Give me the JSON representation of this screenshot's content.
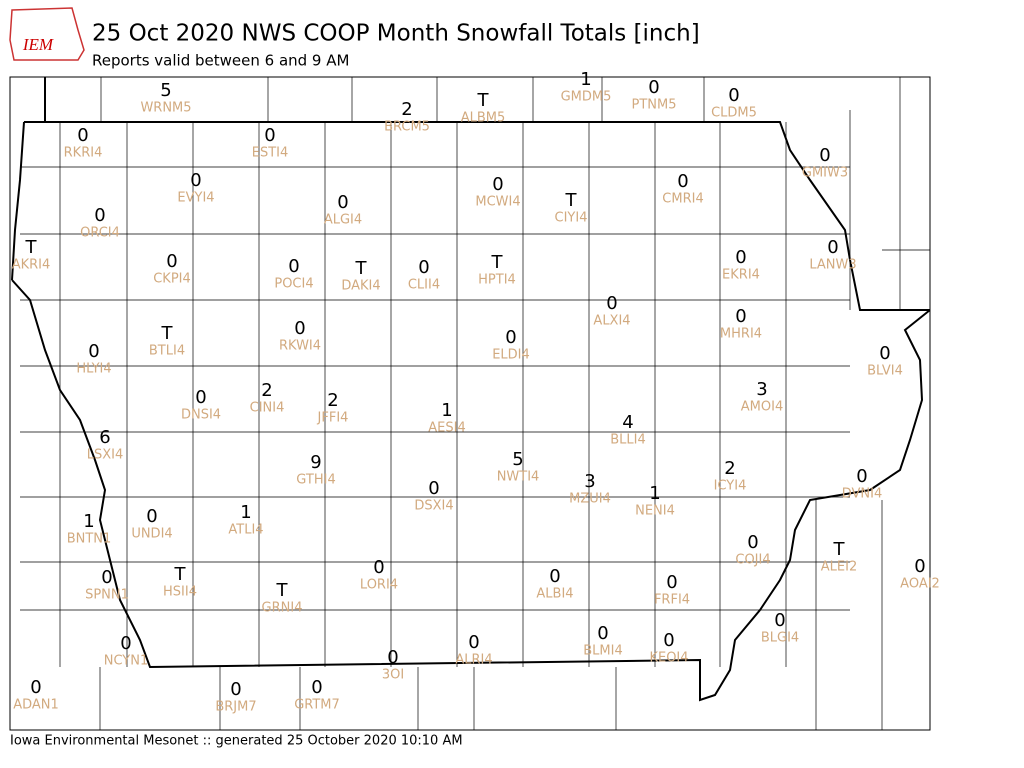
{
  "header": {
    "logo": "IEM",
    "title": "25 Oct 2020 NWS COOP Month Snowfall Totals [inch]",
    "subtitle": "Reports valid between 6 and 9 AM"
  },
  "stations": [
    {
      "id": "WRNM5",
      "value": 5
    },
    {
      "id": "BRCM5",
      "value": 2
    },
    {
      "id": "ALBM5",
      "value": "T"
    },
    {
      "id": "GMDM5",
      "value": 1
    },
    {
      "id": "PTNM5",
      "value": 0
    },
    {
      "id": "CLDM5",
      "value": 0
    },
    {
      "id": "RKRI4",
      "value": 0
    },
    {
      "id": "ESTI4",
      "value": 0
    },
    {
      "id": "GMIW3",
      "value": 0
    },
    {
      "id": "EVYI4",
      "value": 0
    },
    {
      "id": "ALGI4",
      "value": 0
    },
    {
      "id": "MCWI4",
      "value": 0
    },
    {
      "id": "CIYI4",
      "value": "T"
    },
    {
      "id": "CMRI4",
      "value": 0
    },
    {
      "id": "ORCI4",
      "value": 0
    },
    {
      "id": "AKRI4",
      "value": "T"
    },
    {
      "id": "CKPI4",
      "value": 0
    },
    {
      "id": "POCI4",
      "value": 0
    },
    {
      "id": "DAKI4",
      "value": "T"
    },
    {
      "id": "CLII4",
      "value": 0
    },
    {
      "id": "HPTI4",
      "value": "T"
    },
    {
      "id": "EKRI4",
      "value": 0
    },
    {
      "id": "LANW3",
      "value": 0
    },
    {
      "id": "ALXI4",
      "value": 0
    },
    {
      "id": "MHRI4",
      "value": 0
    },
    {
      "id": "BTLI4",
      "value": "T"
    },
    {
      "id": "RKWI4",
      "value": 0
    },
    {
      "id": "ELDI4",
      "value": 0
    },
    {
      "id": "HLYI4",
      "value": 0
    },
    {
      "id": "BLVI4",
      "value": 0
    },
    {
      "id": "DNSI4",
      "value": 0
    },
    {
      "id": "CINI4",
      "value": 2
    },
    {
      "id": "JFFI4",
      "value": 2
    },
    {
      "id": "AMOI4",
      "value": 3
    },
    {
      "id": "AESI4",
      "value": 1
    },
    {
      "id": "BLLI4",
      "value": 4
    },
    {
      "id": "LSXI4",
      "value": 6
    },
    {
      "id": "GTHI4",
      "value": 9
    },
    {
      "id": "NWTI4",
      "value": 5
    },
    {
      "id": "ICYI4",
      "value": 2
    },
    {
      "id": "DVNI4",
      "value": 0
    },
    {
      "id": "MZUI4",
      "value": 3
    },
    {
      "id": "DSXI4",
      "value": 0
    },
    {
      "id": "NENI4",
      "value": 1
    },
    {
      "id": "BNTN1",
      "value": 1
    },
    {
      "id": "UNDI4",
      "value": 0
    },
    {
      "id": "ATLI4",
      "value": 1
    },
    {
      "id": "COJI4",
      "value": 0
    },
    {
      "id": "ALEI2",
      "value": "T"
    },
    {
      "id": "AOAI2",
      "value": 0
    },
    {
      "id": "LORI4",
      "value": 0
    },
    {
      "id": "ALBI4",
      "value": 0
    },
    {
      "id": "HSII4",
      "value": "T"
    },
    {
      "id": "SPNN1",
      "value": 0
    },
    {
      "id": "GRNI4",
      "value": "T"
    },
    {
      "id": "FRFI4",
      "value": 0
    },
    {
      "id": "BLGI4",
      "value": 0
    },
    {
      "id": "BLMI4",
      "value": 0
    },
    {
      "id": "ALRI4",
      "value": 0
    },
    {
      "id": "KEOI4",
      "value": 0
    },
    {
      "id": "NCYN1",
      "value": 0
    },
    {
      "id": "3OI",
      "value": 0
    },
    {
      "id": "ADAN1",
      "value": 0
    },
    {
      "id": "BRJM7",
      "value": 0
    },
    {
      "id": "GRTM7",
      "value": 0
    }
  ],
  "footer": "Iowa Environmental Mesonet :: generated 25 October 2020 10:10 AM"
}
